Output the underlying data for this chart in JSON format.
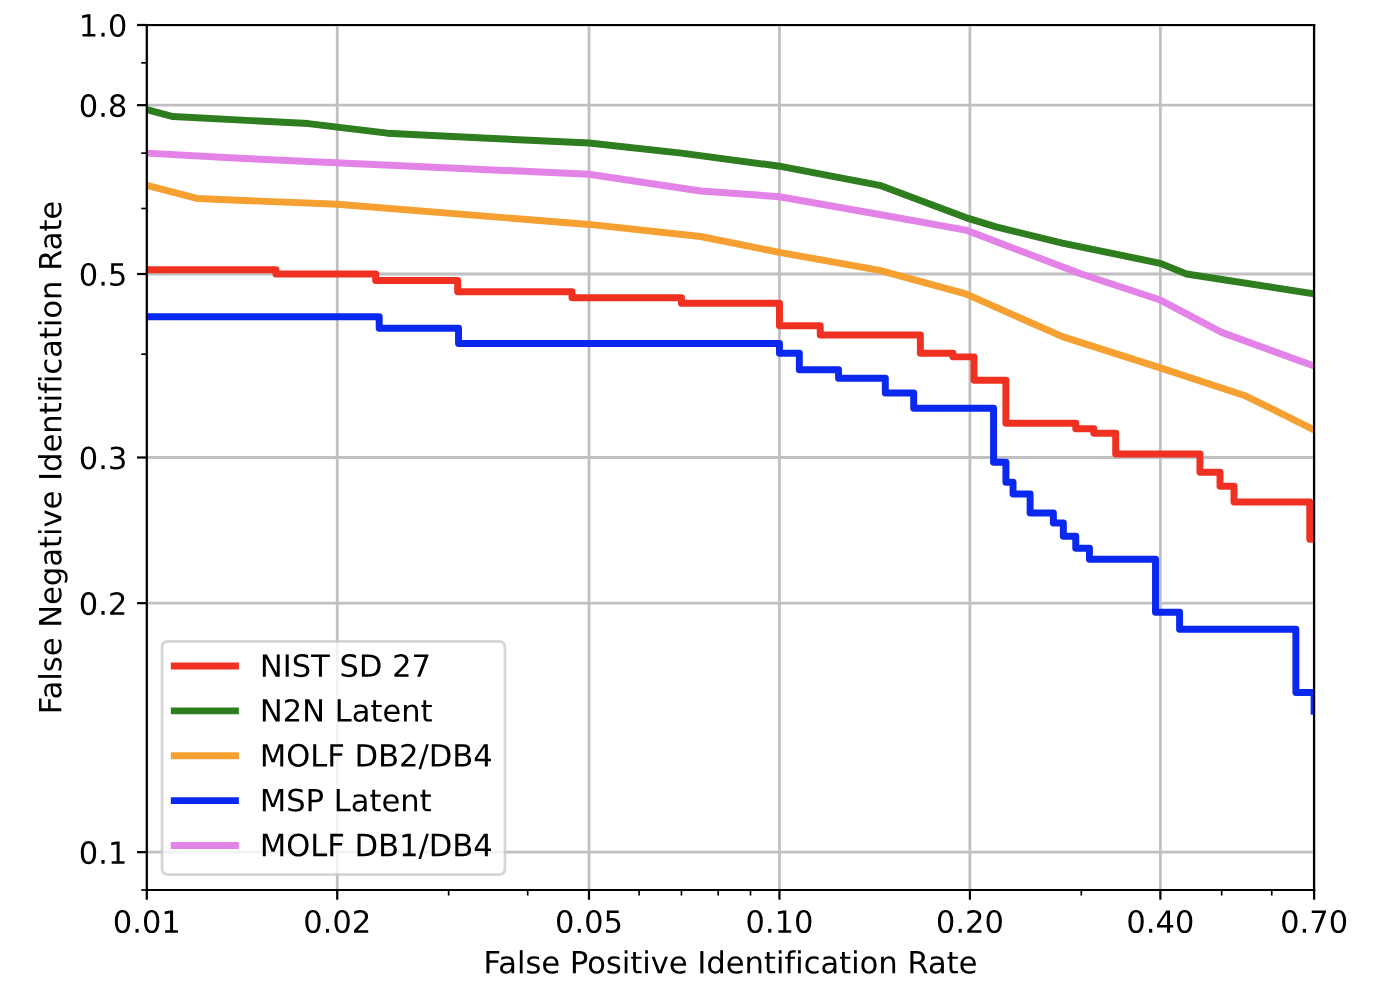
{
  "chart_data": {
    "type": "line",
    "xlabel": "False Positive Identification Rate",
    "ylabel": "False Negative Identification Rate",
    "log": "xy",
    "grid": true,
    "legend": "bottom left",
    "xlim": [
      0.01,
      0.7
    ],
    "ylim": [
      0.09,
      1.0
    ],
    "xticks": [
      0.01,
      0.02,
      0.05,
      {
        "value": 0.1,
        "label": "0.10"
      },
      {
        "value": 0.2,
        "label": "0.20"
      },
      {
        "value": 0.4,
        "label": "0.40"
      },
      {
        "value": 0.7,
        "label": "0.70"
      }
    ],
    "yticks": [
      0.1,
      0.2,
      0.3,
      0.5,
      0.8,
      {
        "value": 1.0,
        "label": "1.0"
      }
    ],
    "series": [
      {
        "name": "NIST SD 27",
        "type": "step",
        "color": "#f03020",
        "x": [
          0.01,
          0.016,
          0.023,
          0.031,
          0.047,
          0.07,
          0.1,
          0.116,
          0.167,
          0.188,
          0.203,
          0.228,
          0.294,
          0.314,
          0.34,
          0.462,
          0.497,
          0.523,
          0.689,
          0.7
        ],
        "values": [
          0.506,
          0.5,
          0.491,
          0.476,
          0.468,
          0.461,
          0.433,
          0.422,
          0.401,
          0.397,
          0.372,
          0.33,
          0.325,
          0.321,
          0.303,
          0.288,
          0.277,
          0.265,
          0.239,
          0.239
        ]
      },
      {
        "name": "N2N Latent",
        "color": "#2e7d1e",
        "x": [
          0.01,
          0.011,
          0.018,
          0.024,
          0.034,
          0.05,
          0.07,
          0.1,
          0.144,
          0.197,
          0.22,
          0.28,
          0.4,
          0.44,
          0.7
        ],
        "values": [
          0.79,
          0.775,
          0.76,
          0.74,
          0.73,
          0.72,
          0.7,
          0.675,
          0.64,
          0.585,
          0.57,
          0.545,
          0.515,
          0.5,
          0.473
        ]
      },
      {
        "name": "MOLF DB2/DB4",
        "color": "#f5a030",
        "x": [
          0.01,
          0.012,
          0.02,
          0.05,
          0.075,
          0.1,
          0.144,
          0.197,
          0.28,
          0.4,
          0.546,
          0.7
        ],
        "values": [
          0.64,
          0.617,
          0.607,
          0.574,
          0.555,
          0.531,
          0.505,
          0.473,
          0.42,
          0.385,
          0.356,
          0.324
        ]
      },
      {
        "name": "MSP Latent",
        "type": "step",
        "color": "#0a28f0",
        "x": [
          0.01,
          0.0233,
          0.0311,
          0.1,
          0.1075,
          0.124,
          0.147,
          0.163,
          0.218,
          0.228,
          0.234,
          0.249,
          0.271,
          0.281,
          0.294,
          0.309,
          0.393,
          0.429,
          0.655,
          0.7
        ],
        "values": [
          0.444,
          0.43,
          0.412,
          0.401,
          0.383,
          0.374,
          0.359,
          0.344,
          0.296,
          0.28,
          0.271,
          0.257,
          0.25,
          0.241,
          0.233,
          0.226,
          0.195,
          0.186,
          0.156,
          0.148
        ]
      },
      {
        "name": "MOLF DB1/DB4",
        "color": "#e383e8",
        "x": [
          0.01,
          0.014,
          0.05,
          0.075,
          0.1,
          0.144,
          0.197,
          0.3,
          0.4,
          0.5,
          0.7
        ],
        "values": [
          0.7,
          0.69,
          0.66,
          0.63,
          0.62,
          0.59,
          0.565,
          0.5,
          0.465,
          0.425,
          0.387
        ]
      }
    ]
  }
}
